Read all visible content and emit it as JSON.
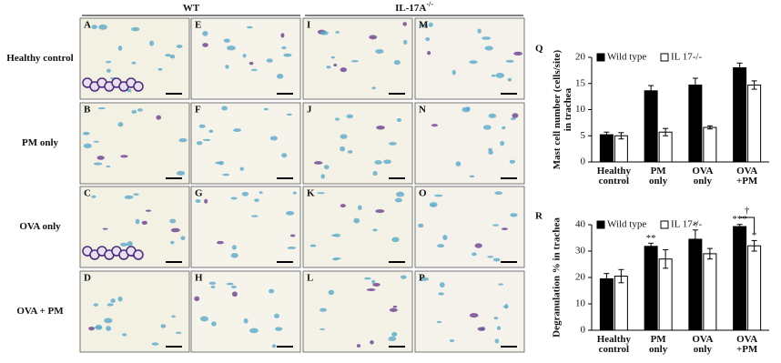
{
  "figure": {
    "column_headers": [
      {
        "text": "WT"
      },
      {
        "text": "IL-17A",
        "sup": "-/-"
      }
    ],
    "row_labels": [
      "Healthy control",
      "PM only",
      "OVA only",
      "OVA + PM"
    ],
    "panels": [
      "A",
      "B",
      "C",
      "D",
      "E",
      "F",
      "G",
      "H",
      "I",
      "J",
      "K",
      "L",
      "M",
      "N",
      "O",
      "P"
    ]
  },
  "chart_data": [
    {
      "type": "bar",
      "title": "Q",
      "y_label": "Mast cell number (cells/site) in trachea",
      "categories": [
        "Healthy control",
        "PM only",
        "OVA only",
        "OVA +PM"
      ],
      "series": [
        {
          "name": "Wild type",
          "color": "#000000",
          "values": [
            5.2,
            13.6,
            14.7,
            18.0
          ],
          "errors": [
            0.5,
            1.0,
            1.3,
            0.9
          ]
        },
        {
          "name": "IL 17-/-",
          "color": "#ffffff",
          "values": [
            5.0,
            5.7,
            6.6,
            14.7
          ],
          "errors": [
            0.6,
            0.7,
            0.3,
            0.8
          ]
        }
      ],
      "ylim": [
        0,
        20
      ],
      "yticks": [
        0,
        5,
        10,
        15,
        20
      ]
    },
    {
      "type": "bar",
      "title": "R",
      "y_label": "Degranulation % in trachea",
      "categories": [
        "Healthy control",
        "PM only",
        "OVA only",
        "OVA +PM"
      ],
      "series": [
        {
          "name": "Wild type",
          "color": "#000000",
          "values": [
            19.5,
            31.8,
            34.5,
            39.3
          ],
          "errors": [
            2.0,
            1.2,
            3.5,
            0.8
          ]
        },
        {
          "name": "IL 17-/-",
          "color": "#ffffff",
          "values": [
            20.5,
            27.0,
            29.0,
            32.0
          ],
          "errors": [
            2.5,
            3.5,
            2.0,
            2.0
          ]
        }
      ],
      "ylim": [
        0,
        40
      ],
      "yticks": [
        0,
        10,
        20,
        30,
        40
      ],
      "annotations": [
        "**",
        "*",
        "***",
        "*",
        "†"
      ]
    }
  ]
}
